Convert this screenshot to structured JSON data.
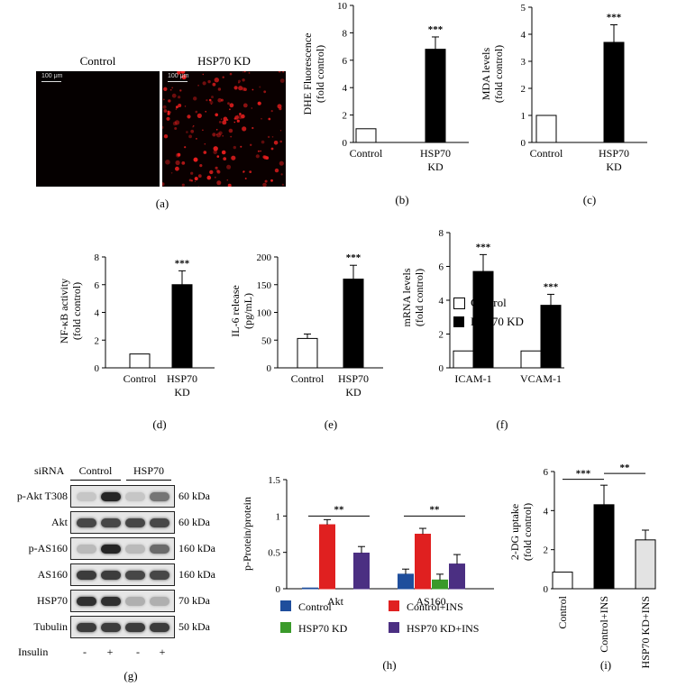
{
  "panel_labels": {
    "a": "(a)",
    "b": "(b)",
    "c": "(c)",
    "d": "(d)",
    "e": "(e)",
    "f": "(f)",
    "g": "(g)",
    "h": "(h)",
    "i": "(i)"
  },
  "panel_a": {
    "left_label": "Control",
    "right_label": "HSP70 KD",
    "scale_bar": "100 μm"
  },
  "panel_f_legend": {
    "control": "Control",
    "kd": "HSP70 KD"
  },
  "panel_g": {
    "sirna_label": "siRNA",
    "control_group": "Control",
    "kd_group": "HSP70",
    "insulin_label": "Insulin",
    "insulin_signs": [
      "-",
      "+",
      "-",
      "+"
    ],
    "rows": [
      {
        "name": "p-Akt T308",
        "size": "60 kDa"
      },
      {
        "name": "Akt",
        "size": "60 kDa"
      },
      {
        "name": "p-AS160",
        "size": "160 kDa"
      },
      {
        "name": "AS160",
        "size": "160 kDa"
      },
      {
        "name": "HSP70",
        "size": "70 kDa"
      },
      {
        "name": "Tubulin",
        "size": "50 kDa"
      }
    ]
  },
  "colors": {
    "control": "#1f4e9c",
    "control_ins": "#e02020",
    "kd": "#3a9a2a",
    "kd_ins": "#4b2f82",
    "ins_i": "#e3e3e3"
  },
  "chart_data": [
    {
      "panel": "b",
      "type": "bar",
      "categories": [
        "Control",
        "HSP70 KD"
      ],
      "values": [
        1,
        6.8
      ],
      "errors": [
        0,
        0.9
      ],
      "ylabel": "DHE Fluorescence (fold control)",
      "ylim": [
        0,
        10
      ],
      "yticks": [
        0,
        2,
        4,
        6,
        8,
        10
      ],
      "significance": [
        "",
        "***"
      ]
    },
    {
      "panel": "c",
      "type": "bar",
      "categories": [
        "Control",
        "HSP70 KD"
      ],
      "values": [
        1,
        3.7
      ],
      "errors": [
        0,
        0.65
      ],
      "ylabel": "MDA levels (fold control)",
      "ylim": [
        0,
        5
      ],
      "yticks": [
        0,
        1,
        2,
        3,
        4,
        5
      ],
      "significance": [
        "",
        "***"
      ]
    },
    {
      "panel": "d",
      "type": "bar",
      "categories": [
        "Control",
        "HSP70 KD"
      ],
      "values": [
        1,
        6.0
      ],
      "errors": [
        0,
        1.0
      ],
      "ylabel": "NF-κB activity (fold control)",
      "ylim": [
        0,
        8
      ],
      "yticks": [
        0,
        2,
        4,
        6,
        8
      ],
      "significance": [
        "",
        "***"
      ]
    },
    {
      "panel": "e",
      "type": "bar",
      "categories": [
        "Control",
        "HSP70 KD"
      ],
      "values": [
        53,
        160
      ],
      "errors": [
        8,
        25
      ],
      "ylabel": "IL-6 release (pg/mL)",
      "ylim": [
        0,
        200
      ],
      "yticks": [
        0,
        50,
        100,
        150,
        200
      ],
      "significance": [
        "",
        "***"
      ]
    },
    {
      "panel": "f",
      "type": "bar",
      "categories": [
        "ICAM-1",
        "VCAM-1"
      ],
      "series": [
        {
          "name": "Control",
          "values": [
            1,
            1
          ],
          "errors": [
            0,
            0
          ]
        },
        {
          "name": "HSP70 KD",
          "values": [
            5.7,
            3.7
          ],
          "errors": [
            1.0,
            0.65
          ]
        }
      ],
      "ylabel": "mRNA levels (fold control)",
      "ylim": [
        0,
        8
      ],
      "yticks": [
        0,
        2,
        4,
        6,
        8
      ],
      "significance": [
        "***",
        "***"
      ]
    },
    {
      "panel": "h",
      "type": "bar",
      "categories": [
        "Akt",
        "AS160"
      ],
      "series": [
        {
          "name": "Control",
          "values": [
            0.01,
            0.2
          ],
          "errors": [
            0,
            0.07
          ]
        },
        {
          "name": "Control+INS",
          "values": [
            0.88,
            0.75
          ],
          "errors": [
            0.07,
            0.08
          ]
        },
        {
          "name": "HSP70 KD",
          "values": [
            0,
            0.12
          ],
          "errors": [
            0,
            0.08
          ]
        },
        {
          "name": "HSP70 KD+INS",
          "values": [
            0.49,
            0.34
          ],
          "errors": [
            0.09,
            0.13
          ]
        }
      ],
      "ylabel": "p-Protein/protein",
      "ylim": [
        0,
        1.5
      ],
      "yticks": [
        "0",
        "0.5",
        "1",
        "1.5"
      ],
      "significance": [
        "**",
        "**"
      ]
    },
    {
      "panel": "i",
      "type": "bar",
      "categories": [
        "Control",
        "Control+INS",
        "HSP70 KD+INS"
      ],
      "values": [
        0.85,
        4.3,
        2.5
      ],
      "errors": [
        0,
        1.0,
        0.5
      ],
      "ylabel": "2-DG uptake (fold control)",
      "ylim": [
        0,
        6
      ],
      "yticks": [
        0,
        2,
        4,
        6
      ],
      "significance": [
        "***",
        "**"
      ]
    }
  ]
}
